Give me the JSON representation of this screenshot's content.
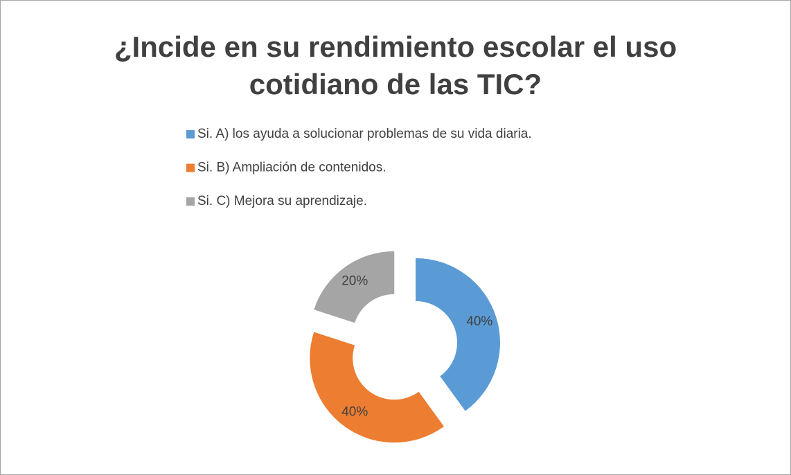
{
  "chart_data": {
    "type": "donut",
    "title": "¿Incide en su rendimiento escolar el uso cotidiano de las TIC?",
    "categories": [
      "Si. A) los ayuda a solucionar problemas de su vida diaria.",
      "Si. B) Ampliación de contenidos.",
      "Si. C) Mejora su aprendizaje."
    ],
    "values": [
      40,
      40,
      20
    ],
    "value_labels": [
      "40%",
      "40%",
      "20%"
    ],
    "colors": [
      "#5b9bd5",
      "#ed7d31",
      "#a5a5a5"
    ],
    "legend": "top"
  }
}
